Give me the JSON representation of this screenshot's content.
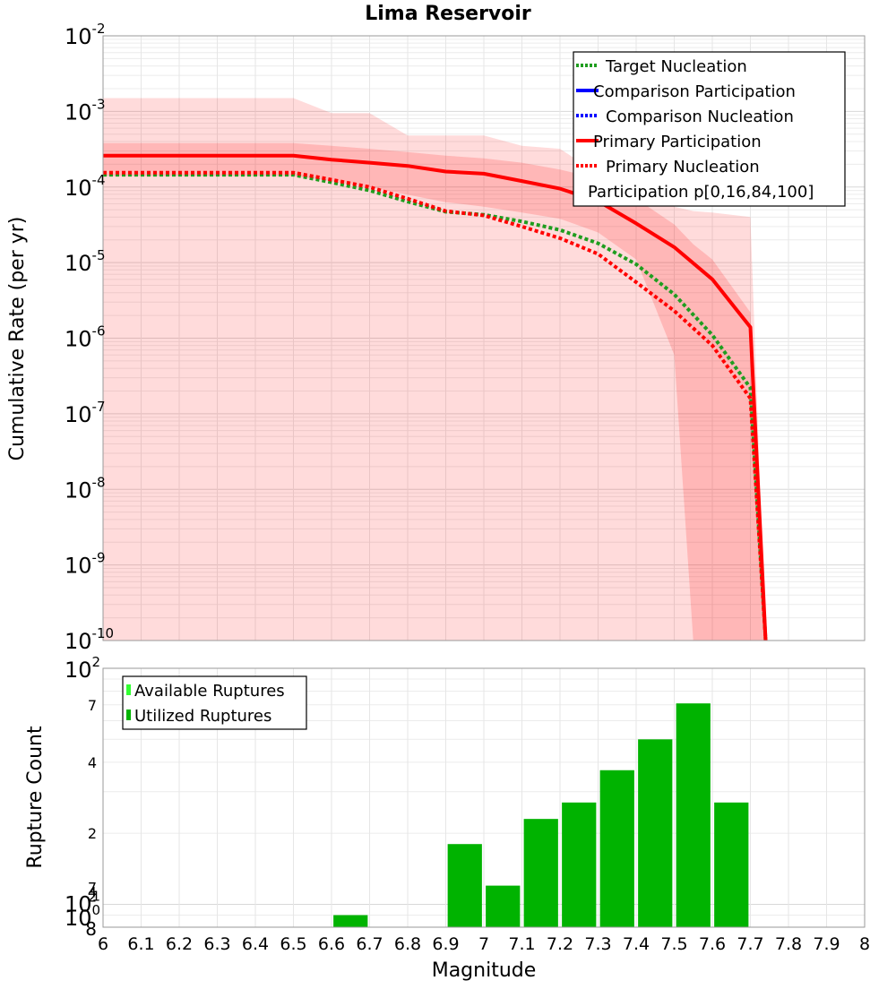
{
  "chart_data": [
    {
      "type": "line",
      "title": "Lima Reservoir",
      "ylabel": "Cumulative Rate (per yr)",
      "y_scale": "log",
      "ylim": [
        1e-10,
        0.01
      ],
      "xlim": [
        6,
        8
      ],
      "grid": true,
      "legend_position": "top-right",
      "y_tick_labels": [
        {
          "base": "10",
          "exp": "-2"
        },
        {
          "base": "10",
          "exp": "-3"
        },
        {
          "base": "10",
          "exp": "-4"
        },
        {
          "base": "10",
          "exp": "-5"
        },
        {
          "base": "10",
          "exp": "-6"
        },
        {
          "base": "10",
          "exp": "-7"
        },
        {
          "base": "10",
          "exp": "-8"
        },
        {
          "base": "10",
          "exp": "-9"
        },
        {
          "base": "10",
          "exp": "-10"
        }
      ],
      "legend": [
        {
          "label": "Target Nucleation",
          "color": "#1f9d1f",
          "style": "dotted"
        },
        {
          "label": "Comparison Participation",
          "color": "#0000ff",
          "style": "solid"
        },
        {
          "label": "Comparison Nucleation",
          "color": "#0000ff",
          "style": "dotted"
        },
        {
          "label": "Primary Participation",
          "color": "#ff0000",
          "style": "solid"
        },
        {
          "label": "Primary Nucleation",
          "color": "#ff0000",
          "style": "dotted"
        },
        {
          "label": "Participation p[0,16,84,100]",
          "color": "#ffb0b0",
          "style": "band"
        }
      ],
      "series": [
        {
          "name": "Primary Participation",
          "color": "#ff0000",
          "style": "solid",
          "x": [
            6.0,
            6.1,
            6.2,
            6.3,
            6.4,
            6.5,
            6.6,
            6.7,
            6.8,
            6.9,
            7.0,
            7.1,
            7.2,
            7.3,
            7.4,
            7.5,
            7.6,
            7.7,
            7.74
          ],
          "values": [
            0.00026,
            0.00026,
            0.00026,
            0.00026,
            0.00026,
            0.00026,
            0.00023,
            0.00021,
            0.00019,
            0.00016,
            0.00015,
            0.00012,
            9.5e-05,
            6.5e-05,
            3.3e-05,
            1.6e-05,
            6e-06,
            1.4e-06,
            1e-10
          ]
        },
        {
          "name": "Primary Nucleation",
          "color": "#ff0000",
          "style": "dotted",
          "x": [
            6.0,
            6.1,
            6.2,
            6.3,
            6.4,
            6.5,
            6.6,
            6.7,
            6.8,
            6.9,
            7.0,
            7.1,
            7.2,
            7.3,
            7.4,
            7.5,
            7.6,
            7.7,
            7.74
          ],
          "values": [
            0.000155,
            0.000155,
            0.000155,
            0.000155,
            0.000155,
            0.000155,
            0.000125,
            0.0001,
            7e-05,
            4.8e-05,
            4.2e-05,
            3e-05,
            2.1e-05,
            1.3e-05,
            5.5e-06,
            2.3e-06,
            8e-07,
            1.6e-07,
            1e-10
          ]
        },
        {
          "name": "Target Nucleation",
          "color": "#1f9d1f",
          "style": "dotted",
          "x": [
            6.0,
            6.1,
            6.2,
            6.3,
            6.4,
            6.5,
            6.6,
            6.7,
            6.8,
            6.9,
            7.0,
            7.1,
            7.2,
            7.3,
            7.4,
            7.5,
            7.6,
            7.7,
            7.74
          ],
          "values": [
            0.000145,
            0.000145,
            0.000145,
            0.000145,
            0.000145,
            0.000145,
            0.000115,
            9e-05,
            6.4e-05,
            4.7e-05,
            4.3e-05,
            3.5e-05,
            2.7e-05,
            1.8e-05,
            9.5e-06,
            3.8e-06,
            1.1e-06,
            2.2e-07,
            1e-10
          ]
        }
      ],
      "band_outer": {
        "x": [
          6.0,
          6.5,
          6.6,
          6.7,
          6.8,
          6.9,
          7.0,
          7.1,
          7.2,
          7.3,
          7.4,
          7.5,
          7.55,
          7.6,
          7.7,
          7.74
        ],
        "upper": [
          0.0015,
          0.0015,
          0.00095,
          0.00095,
          0.00048,
          0.00048,
          0.00048,
          0.00035,
          0.00032,
          0.00015,
          0.00011,
          5.5e-05,
          4.8e-05,
          4.6e-05,
          4e-05,
          1e-10
        ],
        "lower": [
          1e-10,
          1e-10,
          1e-10,
          1e-10,
          1e-10,
          1e-10,
          1e-10,
          1e-10,
          1e-10,
          1e-10,
          1e-10,
          1e-10,
          1e-10,
          1e-10,
          1e-10,
          1e-10
        ]
      },
      "band_inner": {
        "x": [
          6.0,
          6.5,
          6.6,
          6.7,
          6.8,
          6.9,
          7.0,
          7.1,
          7.2,
          7.3,
          7.4,
          7.5,
          7.55,
          7.6,
          7.7,
          7.74
        ],
        "upper": [
          0.00038,
          0.00038,
          0.00035,
          0.00032,
          0.00029,
          0.00026,
          0.00024,
          0.00021,
          0.00017,
          0.00013,
          7e-05,
          3.2e-05,
          1.75e-05,
          1.1e-05,
          2.2e-06,
          1e-10
        ],
        "lower": [
          0.00014,
          0.00014,
          0.00012,
          0.0001,
          7.9e-05,
          6.3e-05,
          5.5e-05,
          4.6e-05,
          3.8e-05,
          2.5e-05,
          1.1e-05,
          6e-07,
          1e-10,
          1e-10,
          1e-10,
          1e-10
        ]
      }
    },
    {
      "type": "bar",
      "xlabel": "Magnitude",
      "ylabel": "Rupture Count",
      "y_scale": "log",
      "ylim": [
        8,
        100
      ],
      "xlim": [
        6,
        8
      ],
      "grid": true,
      "legend_position": "top-left",
      "x_ticks": [
        "6",
        "6.1",
        "6.2",
        "6.3",
        "6.4",
        "6.5",
        "6.6",
        "6.7",
        "6.8",
        "6.9",
        "7",
        "7.1",
        "7.2",
        "7.3",
        "7.4",
        "7.5",
        "7.6",
        "7.7",
        "7.8",
        "7.9",
        "8"
      ],
      "y_major_ticks": [
        {
          "base": "10",
          "exp": "0"
        },
        {
          "base": "10",
          "exp": "1"
        },
        {
          "base": "10",
          "exp": "2"
        }
      ],
      "y_minor_ticks": [
        {
          "value": 20,
          "label": "2"
        },
        {
          "value": 40,
          "label": "4"
        },
        {
          "value": 70,
          "label": "7"
        },
        {
          "value": 8,
          "label": "8"
        }
      ],
      "y_extra_ticks": [
        {
          "value": 10.8,
          "label": "2"
        },
        {
          "value": 11.3,
          "label": "4"
        },
        {
          "value": 11.8,
          "label": "7"
        }
      ],
      "legend": [
        {
          "label": "Available Ruptures",
          "color": "#33ff33"
        },
        {
          "label": "Utilized Ruptures",
          "color": "#00b300"
        }
      ],
      "series": [
        {
          "name": "Utilized Ruptures",
          "color": "#00b300",
          "x": [
            6.65,
            6.95,
            7.05,
            7.15,
            7.25,
            7.35,
            7.45,
            7.55,
            7.65
          ],
          "values": [
            9,
            18,
            12,
            23,
            27,
            37,
            50,
            71,
            27
          ]
        }
      ]
    }
  ]
}
